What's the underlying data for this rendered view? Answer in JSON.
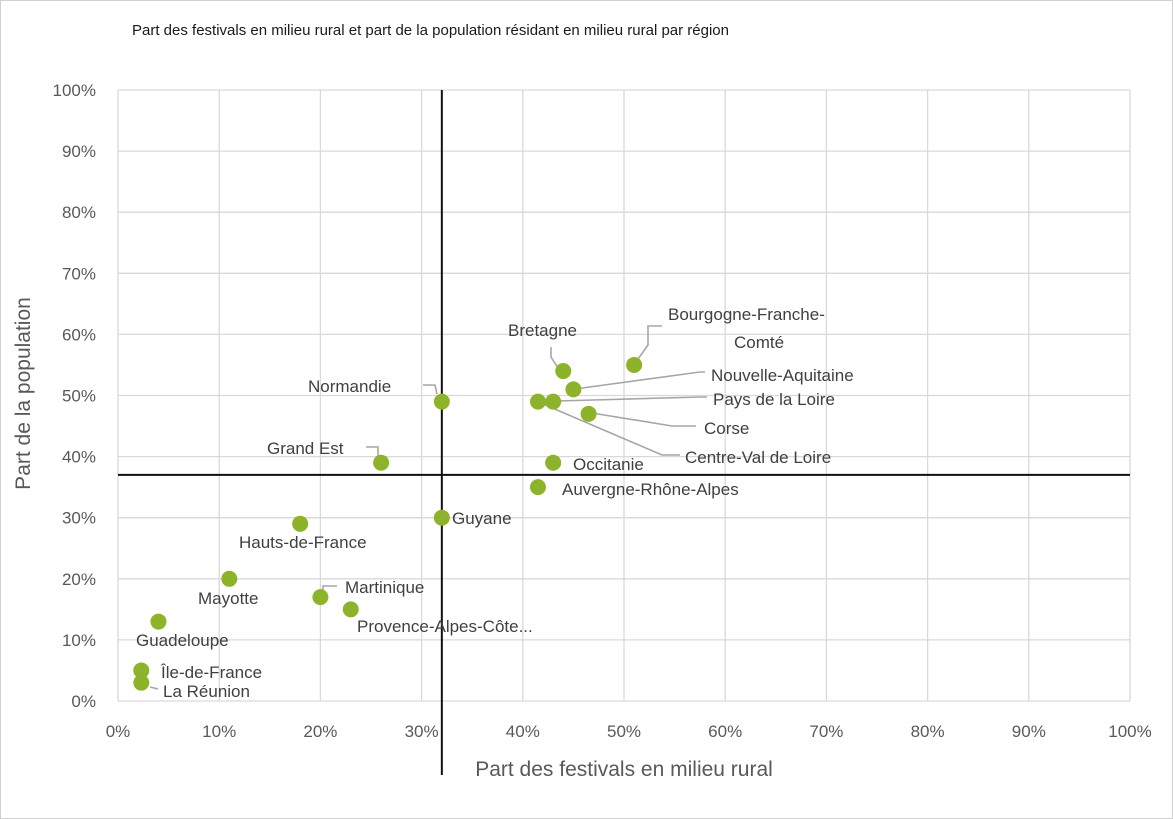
{
  "chart_data": {
    "type": "scatter",
    "title": "Part des festivals en milieu rural et part de la population  résidant en milieu rural par région",
    "xlabel": "Part des festivals en milieu rural",
    "ylabel": "Part de la population",
    "xlim": [
      0,
      100
    ],
    "ylim": [
      0,
      100
    ],
    "x_ticks": [
      "0%",
      "10%",
      "20%",
      "30%",
      "40%",
      "50%",
      "60%",
      "70%",
      "80%",
      "90%",
      "100%"
    ],
    "y_ticks": [
      "0%",
      "10%",
      "20%",
      "30%",
      "40%",
      "50%",
      "60%",
      "70%",
      "80%",
      "90%",
      "100%"
    ],
    "grid": true,
    "reference_lines": {
      "x": 32,
      "y": 37
    },
    "marker_color": "#8db32a",
    "points": [
      {
        "name": "Bourgogne-Franche-Comté",
        "label_lines": [
          "Bourgogne-Franche-",
          "Comté"
        ],
        "x": 51,
        "y": 55
      },
      {
        "name": "Bretagne",
        "label_lines": [
          "Bretagne"
        ],
        "x": 44,
        "y": 54
      },
      {
        "name": "Nouvelle-Aquitaine",
        "label_lines": [
          "Nouvelle-Aquitaine"
        ],
        "x": 45,
        "y": 51
      },
      {
        "name": "Pays de la Loire",
        "label_lines": [
          "Pays de la Loire"
        ],
        "x": 43,
        "y": 49
      },
      {
        "name": "Centre-Val de Loire",
        "label_lines": [
          "Centre-Val de Loire"
        ],
        "x": 41.5,
        "y": 49
      },
      {
        "name": "Corse",
        "label_lines": [
          "Corse"
        ],
        "x": 46.5,
        "y": 47
      },
      {
        "name": "Normandie",
        "label_lines": [
          "Normandie"
        ],
        "x": 32,
        "y": 49
      },
      {
        "name": "Grand Est",
        "label_lines": [
          "Grand Est"
        ],
        "x": 26,
        "y": 39
      },
      {
        "name": "Occitanie",
        "label_lines": [
          "Occitanie"
        ],
        "x": 43,
        "y": 39
      },
      {
        "name": "Auvergne-Rhône-Alpes",
        "label_lines": [
          "Auvergne-Rhône-Alpes"
        ],
        "x": 41.5,
        "y": 35
      },
      {
        "name": "Guyane",
        "label_lines": [
          "Guyane"
        ],
        "x": 32,
        "y": 30
      },
      {
        "name": "Hauts-de-France",
        "label_lines": [
          "Hauts-de-France"
        ],
        "x": 18,
        "y": 29
      },
      {
        "name": "Mayotte",
        "label_lines": [
          "Mayotte"
        ],
        "x": 11,
        "y": 20
      },
      {
        "name": "Martinique",
        "label_lines": [
          "Martinique"
        ],
        "x": 20,
        "y": 17
      },
      {
        "name": "Provence-Alpes-Côte...",
        "label_lines": [
          "Provence-Alpes-Côte..."
        ],
        "x": 23,
        "y": 15
      },
      {
        "name": "Guadeloupe",
        "label_lines": [
          "Guadeloupe"
        ],
        "x": 4,
        "y": 13
      },
      {
        "name": "Île-de-France",
        "label_lines": [
          "Île-de-France"
        ],
        "x": 2.3,
        "y": 5
      },
      {
        "name": "La Réunion",
        "label_lines": [
          "La Réunion"
        ],
        "x": 2.3,
        "y": 3
      }
    ]
  }
}
